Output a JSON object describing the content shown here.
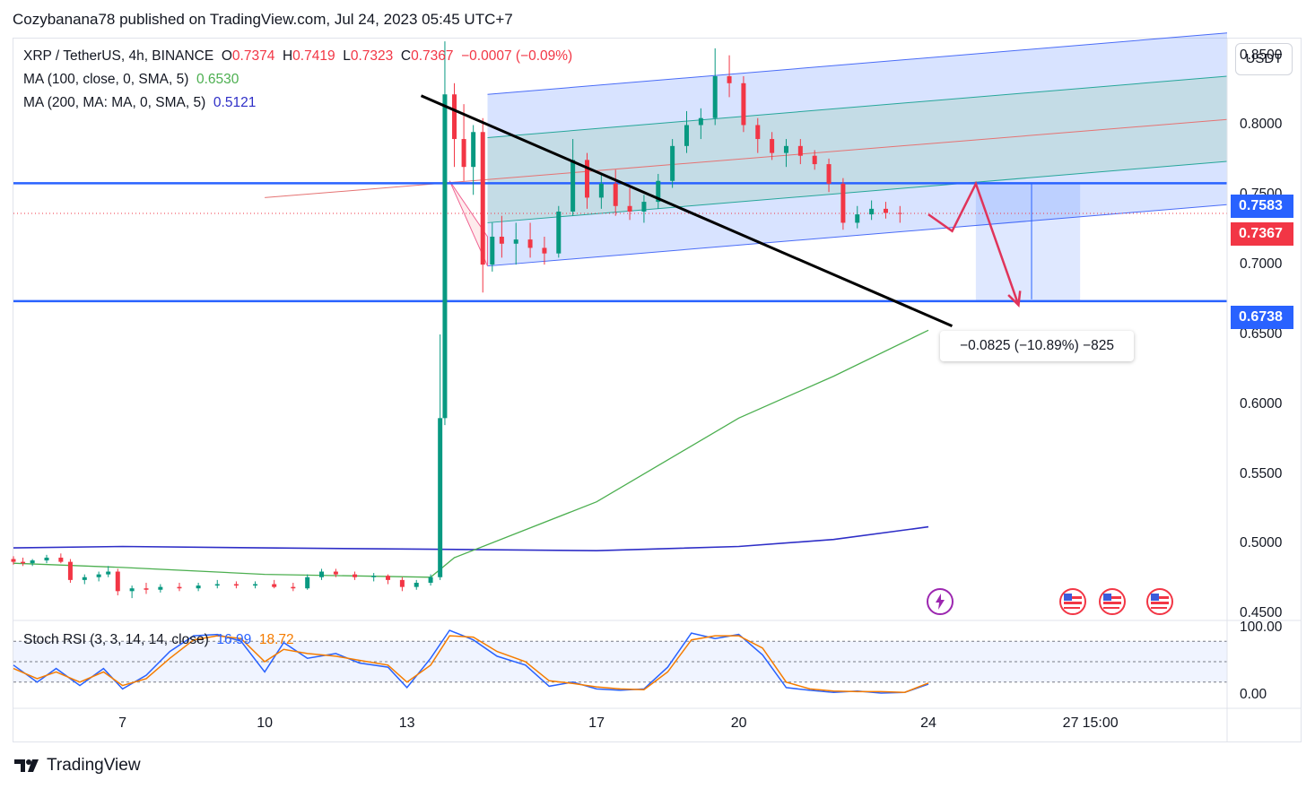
{
  "publisher_line": "Cozybanana78 published on TradingView.com, Jul 24, 2023 05:45 UTC+7",
  "brand": "TradingView",
  "currency_button": "USDT",
  "legend": {
    "symbol": "XRP / TetherUS, 4h, BINANCE",
    "o_label": "O",
    "o": "0.7374",
    "h_label": "H",
    "h": "0.7419",
    "l_label": "L",
    "l": "0.7323",
    "c_label": "C",
    "c": "0.7367",
    "change": "−0.0007 (−0.09%)",
    "ma100_label": "MA (100, close, 0, SMA, 5)",
    "ma100_value": "0.6530",
    "ma200_label": "MA (200, MA: MA, 0, SMA, 5)",
    "ma200_value": "0.5121"
  },
  "stoch_rsi": {
    "label": "Stoch RSI (3, 3, 14, 14, close)",
    "k": "16.99",
    "d": "18.72"
  },
  "price_tags": {
    "resistance": "0.7583",
    "last": "0.7367",
    "support": "0.6738"
  },
  "measure_label": "−0.0825 (−10.89%) −825",
  "colors": {
    "up": "#089981",
    "down": "#f23645",
    "level": "#2962ff",
    "ma100": "#4caf50",
    "ma200": "#2e2ec7"
  },
  "chart_data": [
    {
      "type": "candlestick",
      "title": "XRP / TetherUS, 4h, BINANCE",
      "y_ticks": [
        "0.8500",
        "0.8000",
        "0.7500",
        "0.7000",
        "0.6500",
        "0.6000",
        "0.5500",
        "0.5000",
        "0.4500"
      ],
      "ylim": [
        0.445,
        0.862
      ],
      "x_ticks": [
        "7",
        "10",
        "13",
        "17",
        "20",
        "24",
        "27",
        "15:00"
      ],
      "x_tick_days": [
        7,
        10,
        13,
        17,
        20,
        24,
        27,
        27.625
      ],
      "xlim_days": [
        4.7,
        30.3
      ],
      "horizontal_levels": [
        0.7583,
        0.6738
      ],
      "last_price": 0.7367,
      "trendline": {
        "start": [
          13.3,
          0.821
        ],
        "end": [
          24.5,
          0.656
        ]
      },
      "channel": {
        "start_day": 14.7,
        "end_day": 30.3,
        "lower": [
          0.699,
          0.743
        ],
        "upper": [
          0.822,
          0.866
        ],
        "mid": [
          0.76,
          0.804
        ],
        "inner_low": [
          0.73,
          0.774
        ],
        "inner_high": [
          0.791,
          0.835
        ]
      },
      "projection_path": [
        [
          24.0,
          0.736
        ],
        [
          24.5,
          0.724
        ],
        [
          25.0,
          0.758
        ],
        [
          25.9,
          0.671
        ]
      ],
      "measure_box": {
        "from_day": 25.0,
        "to_day": 27.2,
        "from": 0.7583,
        "to": 0.6738
      },
      "ma100": [
        [
          4.7,
          0.486
        ],
        [
          7,
          0.483
        ],
        [
          10,
          0.478
        ],
        [
          13.5,
          0.476
        ],
        [
          14,
          0.49
        ],
        [
          17,
          0.53
        ],
        [
          20,
          0.59
        ],
        [
          22,
          0.62
        ],
        [
          24,
          0.653
        ]
      ],
      "ma200": [
        [
          4.7,
          0.497
        ],
        [
          7,
          0.498
        ],
        [
          10,
          0.497
        ],
        [
          13.5,
          0.496
        ],
        [
          17,
          0.495
        ],
        [
          20,
          0.498
        ],
        [
          22,
          0.503
        ],
        [
          24,
          0.5121
        ]
      ],
      "candles": [
        [
          4.7,
          0.489,
          0.491,
          0.485,
          0.487
        ],
        [
          4.9,
          0.487,
          0.49,
          0.484,
          0.486
        ],
        [
          5.1,
          0.486,
          0.489,
          0.484,
          0.488
        ],
        [
          5.4,
          0.488,
          0.492,
          0.486,
          0.49
        ],
        [
          5.7,
          0.49,
          0.493,
          0.486,
          0.487
        ],
        [
          5.9,
          0.487,
          0.489,
          0.472,
          0.474
        ],
        [
          6.2,
          0.474,
          0.478,
          0.471,
          0.476
        ],
        [
          6.5,
          0.476,
          0.48,
          0.473,
          0.478
        ],
        [
          6.7,
          0.478,
          0.484,
          0.476,
          0.48
        ],
        [
          6.9,
          0.48,
          0.482,
          0.463,
          0.466
        ],
        [
          7.2,
          0.466,
          0.47,
          0.461,
          0.468
        ],
        [
          7.5,
          0.468,
          0.472,
          0.464,
          0.467
        ],
        [
          7.8,
          0.467,
          0.471,
          0.465,
          0.469
        ],
        [
          8.2,
          0.469,
          0.472,
          0.466,
          0.468
        ],
        [
          8.6,
          0.468,
          0.472,
          0.466,
          0.47
        ],
        [
          9.0,
          0.47,
          0.474,
          0.468,
          0.471
        ],
        [
          9.4,
          0.471,
          0.473,
          0.468,
          0.47
        ],
        [
          9.8,
          0.47,
          0.473,
          0.468,
          0.471
        ],
        [
          10.2,
          0.471,
          0.474,
          0.468,
          0.469
        ],
        [
          10.6,
          0.469,
          0.472,
          0.466,
          0.468
        ],
        [
          10.9,
          0.468,
          0.478,
          0.467,
          0.476
        ],
        [
          11.2,
          0.476,
          0.482,
          0.474,
          0.48
        ],
        [
          11.5,
          0.48,
          0.482,
          0.476,
          0.478
        ],
        [
          11.9,
          0.478,
          0.48,
          0.474,
          0.476
        ],
        [
          12.3,
          0.476,
          0.479,
          0.473,
          0.477
        ],
        [
          12.6,
          0.477,
          0.478,
          0.471,
          0.474
        ],
        [
          12.9,
          0.474,
          0.476,
          0.466,
          0.469
        ],
        [
          13.2,
          0.469,
          0.474,
          0.467,
          0.472
        ],
        [
          13.5,
          0.472,
          0.478,
          0.47,
          0.476
        ],
        [
          13.7,
          0.476,
          0.65,
          0.474,
          0.59
        ],
        [
          13.8,
          0.59,
          0.86,
          0.585,
          0.822
        ],
        [
          14.0,
          0.822,
          0.83,
          0.77,
          0.79
        ],
        [
          14.2,
          0.79,
          0.815,
          0.76,
          0.77
        ],
        [
          14.4,
          0.77,
          0.8,
          0.75,
          0.795
        ],
        [
          14.6,
          0.795,
          0.805,
          0.68,
          0.7
        ],
        [
          14.8,
          0.7,
          0.73,
          0.695,
          0.72
        ],
        [
          15.0,
          0.72,
          0.735,
          0.705,
          0.715
        ],
        [
          15.3,
          0.715,
          0.73,
          0.7,
          0.718
        ],
        [
          15.6,
          0.718,
          0.73,
          0.705,
          0.712
        ],
        [
          15.9,
          0.712,
          0.72,
          0.7,
          0.708
        ],
        [
          16.2,
          0.708,
          0.742,
          0.705,
          0.738
        ],
        [
          16.5,
          0.738,
          0.79,
          0.735,
          0.775
        ],
        [
          16.8,
          0.775,
          0.78,
          0.74,
          0.748
        ],
        [
          17.1,
          0.748,
          0.765,
          0.74,
          0.758
        ],
        [
          17.4,
          0.758,
          0.768,
          0.735,
          0.742
        ],
        [
          17.7,
          0.742,
          0.755,
          0.732,
          0.738
        ],
        [
          18.0,
          0.738,
          0.75,
          0.73,
          0.745
        ],
        [
          18.3,
          0.745,
          0.765,
          0.74,
          0.76
        ],
        [
          18.6,
          0.76,
          0.79,
          0.755,
          0.785
        ],
        [
          18.9,
          0.785,
          0.81,
          0.78,
          0.8
        ],
        [
          19.2,
          0.8,
          0.812,
          0.79,
          0.805
        ],
        [
          19.5,
          0.805,
          0.855,
          0.8,
          0.835
        ],
        [
          19.8,
          0.835,
          0.85,
          0.82,
          0.83
        ],
        [
          20.1,
          0.83,
          0.835,
          0.795,
          0.8
        ],
        [
          20.4,
          0.8,
          0.805,
          0.78,
          0.79
        ],
        [
          20.7,
          0.79,
          0.795,
          0.775,
          0.78
        ],
        [
          21.0,
          0.78,
          0.79,
          0.77,
          0.785
        ],
        [
          21.3,
          0.785,
          0.79,
          0.772,
          0.778
        ],
        [
          21.6,
          0.778,
          0.782,
          0.768,
          0.772
        ],
        [
          21.9,
          0.772,
          0.776,
          0.752,
          0.758
        ],
        [
          22.2,
          0.758,
          0.762,
          0.725,
          0.73
        ],
        [
          22.5,
          0.73,
          0.742,
          0.726,
          0.736
        ],
        [
          22.8,
          0.736,
          0.746,
          0.732,
          0.74
        ],
        [
          23.1,
          0.74,
          0.745,
          0.733,
          0.737
        ],
        [
          23.4,
          0.737,
          0.742,
          0.73,
          0.7367
        ]
      ]
    },
    {
      "type": "line",
      "title": "Stoch RSI (3, 3, 14, 14, close)",
      "y_ticks": [
        "100.00",
        "0.00"
      ],
      "ylim": [
        0,
        100
      ],
      "bands": [
        80,
        50,
        20
      ],
      "series": [
        {
          "name": "K",
          "color": "#2962ff",
          "points": [
            [
              4.7,
              45
            ],
            [
              5.2,
              20
            ],
            [
              5.6,
              40
            ],
            [
              6.1,
              15
            ],
            [
              6.6,
              40
            ],
            [
              7.0,
              10
            ],
            [
              7.5,
              30
            ],
            [
              8.0,
              65
            ],
            [
              8.5,
              88
            ],
            [
              9.0,
              90
            ],
            [
              9.5,
              80
            ],
            [
              10.0,
              35
            ],
            [
              10.4,
              78
            ],
            [
              10.9,
              55
            ],
            [
              11.5,
              62
            ],
            [
              12.0,
              48
            ],
            [
              12.6,
              42
            ],
            [
              13.0,
              12
            ],
            [
              13.5,
              55
            ],
            [
              13.9,
              96
            ],
            [
              14.4,
              82
            ],
            [
              14.9,
              58
            ],
            [
              15.5,
              45
            ],
            [
              16.0,
              14
            ],
            [
              16.5,
              20
            ],
            [
              17.0,
              10
            ],
            [
              17.5,
              8
            ],
            [
              18.0,
              10
            ],
            [
              18.5,
              42
            ],
            [
              19.0,
              92
            ],
            [
              19.5,
              84
            ],
            [
              20.0,
              90
            ],
            [
              20.5,
              60
            ],
            [
              21.0,
              12
            ],
            [
              21.5,
              8
            ],
            [
              22.0,
              5
            ],
            [
              22.5,
              7
            ],
            [
              23.0,
              4
            ],
            [
              23.5,
              5
            ],
            [
              24.0,
              16.99
            ]
          ]
        },
        {
          "name": "D",
          "color": "#f57c00",
          "points": [
            [
              4.7,
              40
            ],
            [
              5.2,
              25
            ],
            [
              5.6,
              35
            ],
            [
              6.1,
              20
            ],
            [
              6.6,
              35
            ],
            [
              7.0,
              15
            ],
            [
              7.5,
              25
            ],
            [
              8.0,
              55
            ],
            [
              8.5,
              82
            ],
            [
              9.0,
              88
            ],
            [
              9.5,
              84
            ],
            [
              10.0,
              50
            ],
            [
              10.4,
              68
            ],
            [
              10.9,
              62
            ],
            [
              11.5,
              58
            ],
            [
              12.0,
              52
            ],
            [
              12.6,
              45
            ],
            [
              13.0,
              20
            ],
            [
              13.5,
              45
            ],
            [
              13.9,
              88
            ],
            [
              14.4,
              86
            ],
            [
              14.9,
              65
            ],
            [
              15.5,
              50
            ],
            [
              16.0,
              22
            ],
            [
              16.5,
              18
            ],
            [
              17.0,
              13
            ],
            [
              17.5,
              10
            ],
            [
              18.0,
              9
            ],
            [
              18.5,
              35
            ],
            [
              19.0,
              82
            ],
            [
              19.5,
              88
            ],
            [
              20.0,
              88
            ],
            [
              20.5,
              70
            ],
            [
              21.0,
              20
            ],
            [
              21.5,
              10
            ],
            [
              22.0,
              7
            ],
            [
              22.5,
              6
            ],
            [
              23.0,
              6
            ],
            [
              23.5,
              5
            ],
            [
              24.0,
              18.72
            ]
          ]
        }
      ]
    }
  ]
}
